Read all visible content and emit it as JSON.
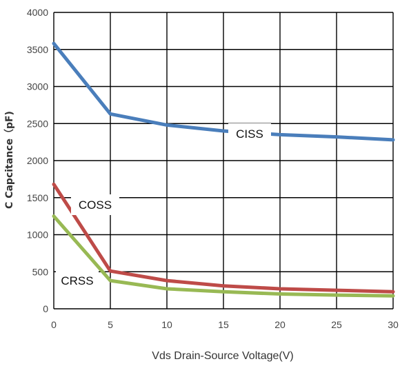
{
  "chart_data": {
    "type": "line",
    "xlabel": "Vds Drain-Source Voltage(V)",
    "ylabel": "C Capcitance（pF)",
    "xlim": [
      0,
      30
    ],
    "ylim": [
      0,
      4000
    ],
    "x_ticks": [
      "0",
      "5",
      "10",
      "15",
      "20",
      "25",
      "30"
    ],
    "y_ticks": [
      "0",
      "500",
      "1000",
      "1500",
      "2000",
      "2500",
      "3000",
      "3500",
      "4000"
    ],
    "grid": true,
    "legend": "none",
    "series": [
      {
        "name": "CISS",
        "color": "#4a7ebb",
        "x": [
          0,
          5,
          10,
          15,
          20,
          25,
          30
        ],
        "y": [
          3580,
          2630,
          2480,
          2400,
          2350,
          2320,
          2280
        ]
      },
      {
        "name": "COSS",
        "color": "#be4b48",
        "x": [
          0,
          5,
          10,
          15,
          20,
          25,
          30
        ],
        "y": [
          1680,
          510,
          380,
          310,
          270,
          250,
          230
        ]
      },
      {
        "name": "CRSS",
        "color": "#98b954",
        "x": [
          0,
          5,
          10,
          15,
          20,
          25,
          30
        ],
        "y": [
          1250,
          380,
          270,
          230,
          200,
          185,
          175
        ]
      }
    ]
  }
}
